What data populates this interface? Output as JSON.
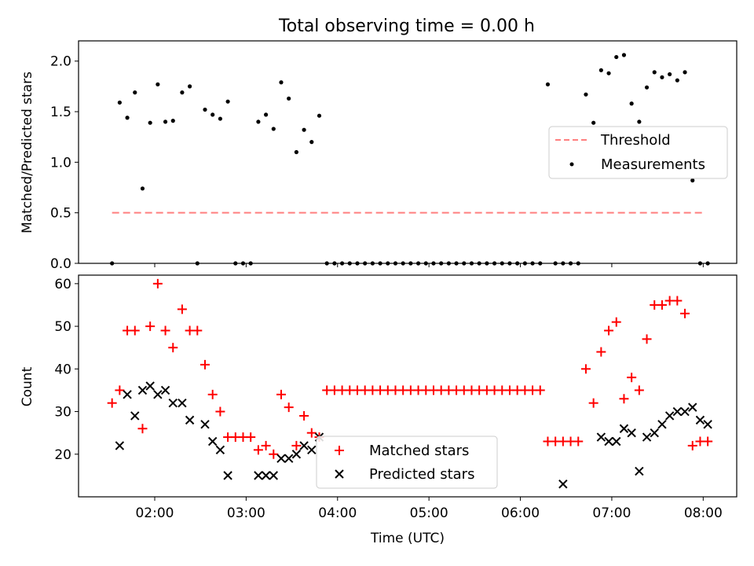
{
  "chart_data": {
    "title": "Total observing time = 0.00 h",
    "xlabel": "Time (UTC)",
    "x_ticks": [
      "02:00",
      "03:00",
      "04:00",
      "05:00",
      "06:00",
      "07:00",
      "08:00"
    ],
    "xlim": [
      "01:10",
      "08:22"
    ],
    "panels": [
      {
        "type": "scatter",
        "ylabel": "Matched/Predicted stars",
        "ylim": [
          0,
          2.2
        ],
        "y_ticks": [
          "0.0",
          "0.5",
          "1.0",
          "1.5",
          "2.0"
        ],
        "legend_position": "right",
        "series": [
          {
            "name": "Threshold",
            "kind": "dashed-line",
            "color": "#ff7f7f",
            "x": [
              "01:32",
              "08:00"
            ],
            "y": [
              0.5,
              0.5
            ]
          },
          {
            "name": "Measurements",
            "kind": "dot",
            "color": "#000000",
            "x": [
              "01:32",
              "01:37",
              "01:42",
              "01:47",
              "01:52",
              "01:57",
              "02:02",
              "02:07",
              "02:12",
              "02:18",
              "02:23",
              "02:28",
              "02:33",
              "02:38",
              "02:43",
              "02:48",
              "02:53",
              "02:58",
              "03:03",
              "03:08",
              "03:13",
              "03:18",
              "03:23",
              "03:28",
              "03:33",
              "03:38",
              "03:43",
              "03:48",
              "03:53",
              "03:58",
              "04:03",
              "04:08",
              "04:13",
              "04:18",
              "04:23",
              "04:28",
              "04:33",
              "04:38",
              "04:43",
              "04:48",
              "04:53",
              "04:58",
              "05:03",
              "05:08",
              "05:13",
              "05:18",
              "05:23",
              "05:28",
              "05:33",
              "05:38",
              "05:43",
              "05:48",
              "05:53",
              "05:58",
              "06:03",
              "06:08",
              "06:13",
              "06:18",
              "06:23",
              "06:28",
              "06:33",
              "06:38",
              "06:43",
              "06:48",
              "06:53",
              "06:58",
              "07:03",
              "07:08",
              "07:13",
              "07:18",
              "07:23",
              "07:28",
              "07:33",
              "07:38",
              "07:43",
              "07:48",
              "07:53",
              "07:58",
              "08:03"
            ],
            "y": [
              0.0,
              1.59,
              1.44,
              1.69,
              0.74,
              1.39,
              1.77,
              1.4,
              1.41,
              1.69,
              1.75,
              0.0,
              1.52,
              1.47,
              1.43,
              1.6,
              0.0,
              0.0,
              0.0,
              1.4,
              1.47,
              1.33,
              1.79,
              1.63,
              1.1,
              1.32,
              1.2,
              1.46,
              0.0,
              0.0,
              0.0,
              0.0,
              0.0,
              0.0,
              0.0,
              0.0,
              0.0,
              0.0,
              0.0,
              0.0,
              0.0,
              0.0,
              0.0,
              0.0,
              0.0,
              0.0,
              0.0,
              0.0,
              0.0,
              0.0,
              0.0,
              0.0,
              0.0,
              0.0,
              0.0,
              0.0,
              0.0,
              1.77,
              0.0,
              0.0,
              0.0,
              0.0,
              1.67,
              1.39,
              1.91,
              1.88,
              2.04,
              2.06,
              1.58,
              1.4,
              1.74,
              1.89,
              1.84,
              1.87,
              1.81,
              1.89,
              0.82,
              0.0,
              0.0
            ]
          }
        ]
      },
      {
        "type": "scatter",
        "ylabel": "Count",
        "ylim": [
          10,
          62
        ],
        "y_ticks": [
          "20",
          "30",
          "40",
          "50",
          "60"
        ],
        "legend_position": "bottom-center",
        "series": [
          {
            "name": "Matched stars",
            "kind": "plus",
            "color": "#ff0000",
            "x": [
              "01:32",
              "01:37",
              "01:42",
              "01:47",
              "01:52",
              "01:57",
              "02:02",
              "02:07",
              "02:12",
              "02:18",
              "02:23",
              "02:28",
              "02:33",
              "02:38",
              "02:43",
              "02:48",
              "02:53",
              "02:58",
              "03:03",
              "03:08",
              "03:13",
              "03:18",
              "03:23",
              "03:28",
              "03:33",
              "03:38",
              "03:43",
              "03:48",
              "03:53",
              "03:58",
              "04:03",
              "04:08",
              "04:13",
              "04:18",
              "04:23",
              "04:28",
              "04:33",
              "04:38",
              "04:43",
              "04:48",
              "04:53",
              "04:58",
              "05:03",
              "05:08",
              "05:13",
              "05:18",
              "05:23",
              "05:28",
              "05:33",
              "05:38",
              "05:43",
              "05:48",
              "05:53",
              "05:58",
              "06:03",
              "06:08",
              "06:13",
              "06:18",
              "06:23",
              "06:28",
              "06:33",
              "06:38",
              "06:43",
              "06:48",
              "06:53",
              "06:58",
              "07:03",
              "07:08",
              "07:13",
              "07:18",
              "07:23",
              "07:28",
              "07:33",
              "07:38",
              "07:43",
              "07:48",
              "07:53",
              "07:58",
              "08:03"
            ],
            "y": [
              32,
              35,
              49,
              49,
              26,
              50,
              60,
              49,
              45,
              54,
              49,
              49,
              41,
              34,
              30,
              24,
              24,
              24,
              24,
              21,
              22,
              20,
              34,
              31,
              22,
              29,
              25,
              24,
              35,
              35,
              35,
              35,
              35,
              35,
              35,
              35,
              35,
              35,
              35,
              35,
              35,
              35,
              35,
              35,
              35,
              35,
              35,
              35,
              35,
              35,
              35,
              35,
              35,
              35,
              35,
              35,
              35,
              23,
              23,
              23,
              23,
              23,
              40,
              32,
              44,
              49,
              51,
              33,
              38,
              35,
              47,
              55,
              55,
              56,
              56,
              53,
              22,
              23,
              23
            ]
          },
          {
            "name": "Predicted stars",
            "kind": "x",
            "color": "#000000",
            "x": [
              "01:37",
              "01:42",
              "01:47",
              "01:52",
              "01:57",
              "02:02",
              "02:07",
              "02:12",
              "02:18",
              "02:23",
              "02:33",
              "02:38",
              "02:43",
              "02:48",
              "03:08",
              "03:13",
              "03:18",
              "03:23",
              "03:28",
              "03:33",
              "03:38",
              "03:43",
              "03:48",
              "06:28",
              "06:53",
              "06:58",
              "07:03",
              "07:08",
              "07:13",
              "07:18",
              "07:23",
              "07:28",
              "07:33",
              "07:38",
              "07:43",
              "07:48",
              "07:53",
              "07:58",
              "08:03"
            ],
            "y": [
              22,
              34,
              29,
              35,
              36,
              34,
              35,
              32,
              32,
              28,
              27,
              23,
              21,
              15,
              15,
              15,
              15,
              19,
              19,
              20,
              22,
              21,
              24,
              13,
              24,
              23,
              23,
              26,
              25,
              16,
              24,
              25,
              27,
              29,
              30,
              30,
              31,
              28,
              27
            ]
          }
        ]
      }
    ]
  }
}
